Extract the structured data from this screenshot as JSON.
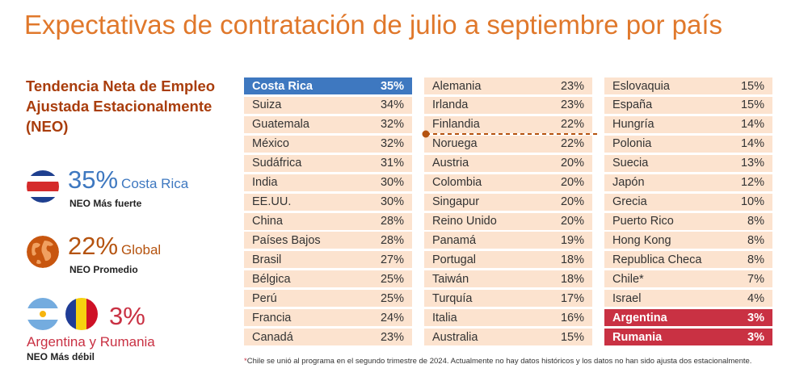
{
  "title": "Expectativas de contratación de julio a septiembre por país",
  "neo_heading": "Tendencia Neta de Empleo Ajustada Estacionalmente (NEO)",
  "colors": {
    "title": "#E0782B",
    "heading": "#A93D0C",
    "strongest": "#3E78C0",
    "average": "#B5530F",
    "weakest": "#C93143",
    "row_fill": "#FCE3CF"
  },
  "highlights": [
    {
      "value": "35%",
      "name": "Costa Rica",
      "label": "NEO Más fuerte",
      "icon": "costa-rica-flag-icon"
    },
    {
      "value": "22%",
      "name": "Global",
      "label": "NEO Promedio",
      "icon": "globe-icon"
    },
    {
      "value": "3%",
      "name": "Argentina y Rumania",
      "label": "NEO Más débil",
      "icon": "argentina-romania-flags-icon"
    }
  ],
  "footnote": {
    "marker": "*",
    "text": "Chile se unió al programa en el segundo trimestre de 2024. Actualmente no hay datos históricos y los datos no han sido ajusta dos estacionalmente."
  },
  "chart_data": {
    "type": "table",
    "title": "Expectativas de contratación de julio a septiembre por país",
    "unit": "%",
    "global_average": 22,
    "columns": [
      [
        {
          "country": "Costa Rica",
          "value": "35%",
          "highlight": "top"
        },
        {
          "country": "Suiza",
          "value": "34%"
        },
        {
          "country": "Guatemala",
          "value": "32%"
        },
        {
          "country": "México",
          "value": "32%"
        },
        {
          "country": "Sudáfrica",
          "value": "31%"
        },
        {
          "country": "India",
          "value": "30%"
        },
        {
          "country": "EE.UU.",
          "value": "30%"
        },
        {
          "country": "China",
          "value": "28%"
        },
        {
          "country": "Países Bajos",
          "value": "28%"
        },
        {
          "country": "Brasil",
          "value": "27%"
        },
        {
          "country": "Bélgica",
          "value": "25%"
        },
        {
          "country": "Perú",
          "value": "25%"
        },
        {
          "country": "Francia",
          "value": "24%"
        },
        {
          "country": "Canadá",
          "value": "23%"
        }
      ],
      [
        {
          "country": "Alemania",
          "value": "23%"
        },
        {
          "country": "Irlanda",
          "value": "23%"
        },
        {
          "country": "Finlandia",
          "value": "22%"
        },
        {
          "country": "Noruega",
          "value": "22%"
        },
        {
          "country": "Austria",
          "value": "20%"
        },
        {
          "country": "Colombia",
          "value": "20%"
        },
        {
          "country": "Singapur",
          "value": "20%"
        },
        {
          "country": "Reino Unido",
          "value": "20%"
        },
        {
          "country": "Panamá",
          "value": "19%"
        },
        {
          "country": "Portugal",
          "value": "18%"
        },
        {
          "country": "Taiwán",
          "value": "18%"
        },
        {
          "country": "Turquía",
          "value": "17%"
        },
        {
          "country": "Italia",
          "value": "16%"
        },
        {
          "country": "Australia",
          "value": "15%"
        }
      ],
      [
        {
          "country": "Eslovaquia",
          "value": "15%"
        },
        {
          "country": "España",
          "value": "15%"
        },
        {
          "country": "Hungría",
          "value": "14%"
        },
        {
          "country": "Polonia",
          "value": "14%"
        },
        {
          "country": "Suecia",
          "value": "13%"
        },
        {
          "country": "Japón",
          "value": "12%"
        },
        {
          "country": "Grecia",
          "value": "10%"
        },
        {
          "country": "Puerto Rico",
          "value": "8%"
        },
        {
          "country": "Hong Kong",
          "value": "8%"
        },
        {
          "country": "Republica Checa",
          "value": "8%"
        },
        {
          "country": "Chile*",
          "value": "7%"
        },
        {
          "country": "Israel",
          "value": "4%"
        },
        {
          "country": "Argentina",
          "value": "3%",
          "highlight": "bottom"
        },
        {
          "country": "Rumania",
          "value": "3%",
          "highlight": "bottom"
        }
      ]
    ]
  }
}
